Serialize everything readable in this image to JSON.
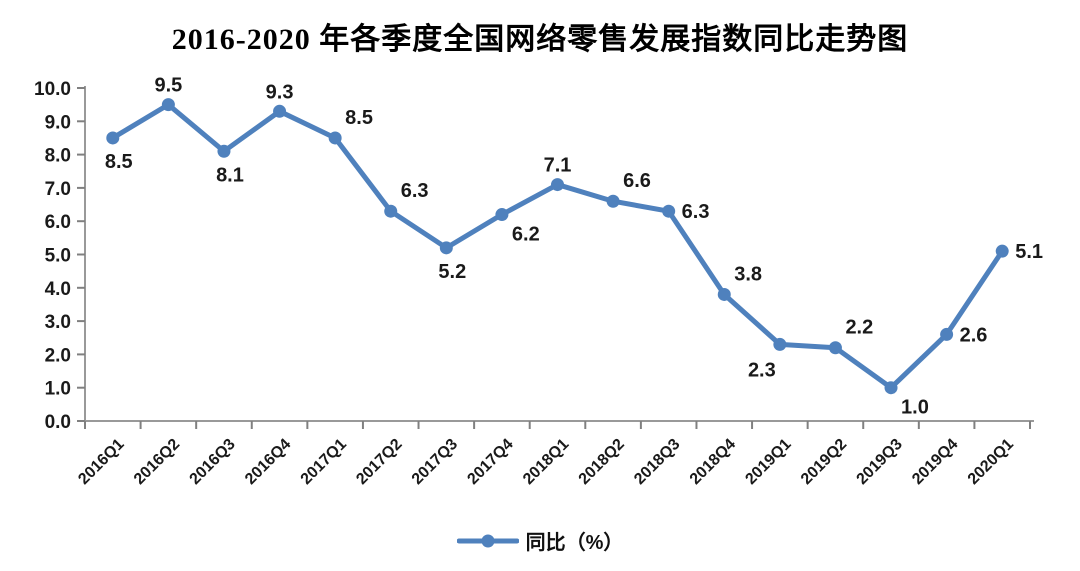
{
  "title": "2016-2020 年各季度全国网络零售发展指数同比走势图",
  "legend": {
    "label": "同比（%）"
  },
  "chart_data": {
    "type": "line",
    "title": "2016-2020 年各季度全国网络零售发展指数同比走势图",
    "categories": [
      "2016Q1",
      "2016Q2",
      "2016Q3",
      "2016Q4",
      "2017Q1",
      "2017Q2",
      "2017Q3",
      "2017Q4",
      "2018Q1",
      "2018Q2",
      "2018Q3",
      "2018Q4",
      "2019Q1",
      "2019Q2",
      "2019Q3",
      "2019Q4",
      "2020Q1"
    ],
    "series": [
      {
        "name": "同比（%）",
        "values": [
          8.5,
          9.5,
          8.1,
          9.3,
          8.5,
          6.3,
          5.2,
          6.2,
          7.1,
          6.6,
          6.3,
          3.8,
          2.3,
          2.2,
          1.0,
          2.6,
          5.1
        ]
      }
    ],
    "xlabel": "",
    "ylabel": "",
    "ylim": [
      0,
      10
    ],
    "ytick_step": 1.0,
    "ytick_labels": [
      "0.0",
      "1.0",
      "2.0",
      "3.0",
      "4.0",
      "5.0",
      "6.0",
      "7.0",
      "8.0",
      "9.0",
      "10.0"
    ],
    "grid": false,
    "legend_position": "bottom",
    "marker": "circle",
    "data_label_decimals": 1,
    "label_positions": [
      "below",
      "above",
      "below",
      "above",
      "above-right",
      "above-right",
      "below",
      "below-right",
      "above",
      "above-right",
      "right",
      "above-right",
      "below-left",
      "above-right",
      "below-right",
      "right",
      "right"
    ],
    "colors": {
      "line": "#4f81bd",
      "marker": "#4f81bd",
      "data_label": "#1a1a1a",
      "tick_label": "#1a1a1a",
      "axis": "#999999",
      "tick": "#808080",
      "background": "#ffffff"
    }
  }
}
